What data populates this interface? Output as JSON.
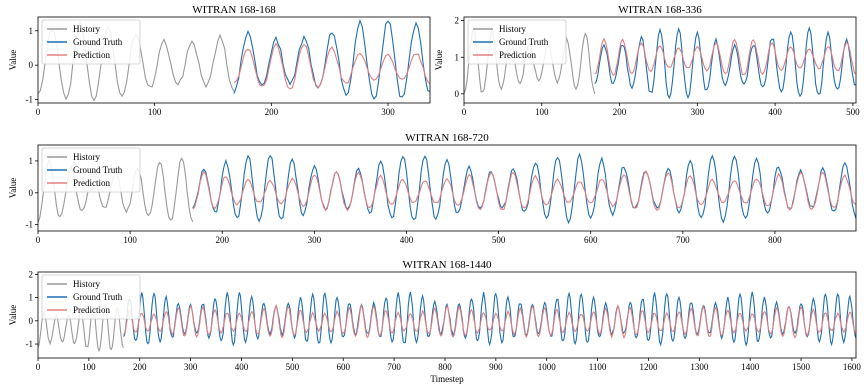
{
  "chart_data": [
    {
      "type": "line",
      "title": "WITRAN 168-168",
      "xlabel": "",
      "ylabel": "Value",
      "xlim": [
        0,
        336
      ],
      "ylim": [
        -1.1,
        1.4
      ],
      "xticks": [
        0,
        100,
        200,
        300
      ],
      "yticks": [
        -1,
        0,
        1
      ],
      "legend_position": "top-left",
      "history_end": 168,
      "series": [
        {
          "name": "History",
          "color": "#999999",
          "x_range": [
            0,
            168
          ],
          "period": 24,
          "amplitude": 1.0,
          "offset": 0.0
        },
        {
          "name": "Ground Truth",
          "color": "#1f6faf",
          "x_range": [
            168,
            336
          ],
          "period": 24,
          "amplitude": 1.05,
          "offset": 0.05
        },
        {
          "name": "Prediction",
          "color": "#e08080",
          "x_range": [
            168,
            336
          ],
          "period": 24,
          "amplitude": 0.6,
          "offset": -0.1
        }
      ]
    },
    {
      "type": "line",
      "title": "WITRAN 168-336",
      "xlabel": "",
      "ylabel": "Value",
      "xlim": [
        0,
        504
      ],
      "ylim": [
        -0.25,
        2.1
      ],
      "xticks": [
        0,
        100,
        200,
        300,
        400,
        500
      ],
      "yticks": [
        0,
        1,
        2
      ],
      "legend_position": "top-left",
      "history_end": 168,
      "series": [
        {
          "name": "History",
          "color": "#999999",
          "x_range": [
            0,
            168
          ],
          "period": 24,
          "amplitude": 0.8,
          "offset": 0.8
        },
        {
          "name": "Ground Truth",
          "color": "#1f6faf",
          "x_range": [
            168,
            504
          ],
          "period": 24,
          "amplitude": 0.85,
          "offset": 0.75
        },
        {
          "name": "Prediction",
          "color": "#e08080",
          "x_range": [
            168,
            504
          ],
          "period": 24,
          "amplitude": 0.45,
          "offset": 0.95
        }
      ]
    },
    {
      "type": "line",
      "title": "WITRAN 168-720",
      "xlabel": "",
      "ylabel": "Value",
      "xlim": [
        0,
        888
      ],
      "ylim": [
        -1.2,
        1.5
      ],
      "xticks": [
        0,
        100,
        200,
        300,
        400,
        500,
        600,
        700,
        800
      ],
      "yticks": [
        -1,
        0,
        1
      ],
      "legend_position": "top-left",
      "history_end": 168,
      "series": [
        {
          "name": "History",
          "color": "#999999",
          "x_range": [
            0,
            168
          ],
          "period": 24,
          "amplitude": 0.9,
          "offset": 0.0
        },
        {
          "name": "Ground Truth",
          "color": "#1f6faf",
          "x_range": [
            168,
            888
          ],
          "period": 24,
          "amplitude": 0.95,
          "offset": 0.05
        },
        {
          "name": "Prediction",
          "color": "#e08080",
          "x_range": [
            168,
            888
          ],
          "period": 24,
          "amplitude": 0.55,
          "offset": 0.0
        }
      ]
    },
    {
      "type": "line",
      "title": "WITRAN 168-1440",
      "xlabel": "Timestep",
      "ylabel": "Value",
      "xlim": [
        0,
        1608
      ],
      "ylim": [
        -1.6,
        2.1
      ],
      "xticks": [
        0,
        100,
        200,
        300,
        400,
        500,
        600,
        700,
        800,
        900,
        1000,
        1100,
        1200,
        1300,
        1400,
        1500,
        1600
      ],
      "yticks": [
        -1,
        0,
        1,
        2
      ],
      "legend_position": "top-left",
      "history_end": 168,
      "series": [
        {
          "name": "History",
          "color": "#999999",
          "x_range": [
            0,
            168
          ],
          "period": 24,
          "amplitude": 0.9,
          "offset": -0.4
        },
        {
          "name": "Ground Truth",
          "color": "#1f6faf",
          "x_range": [
            168,
            1608
          ],
          "period": 24,
          "amplitude": 1.0,
          "offset": 0.0
        },
        {
          "name": "Prediction",
          "color": "#e08080",
          "x_range": [
            168,
            1608
          ],
          "period": 24,
          "amplitude": 0.6,
          "offset": -0.1
        }
      ]
    }
  ]
}
